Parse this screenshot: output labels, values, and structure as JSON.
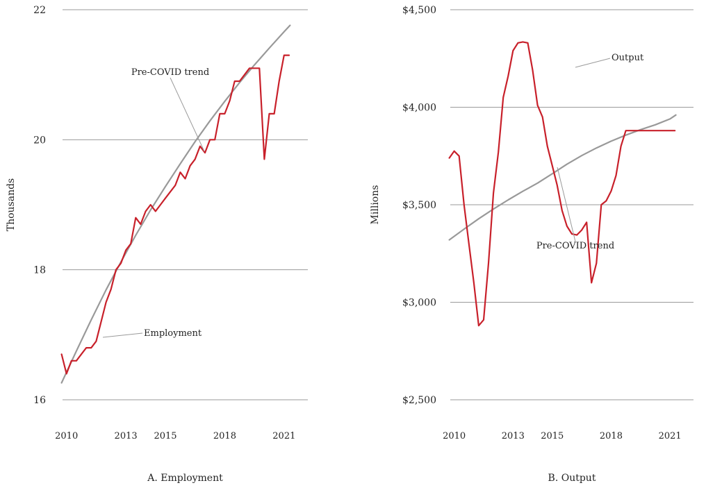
{
  "colors": {
    "actual": "#c8202a",
    "trend": "#999999",
    "grid": "#9a9a9a",
    "leader": "#9a9a9a"
  },
  "chart_data": [
    {
      "type": "line",
      "title": "A. Employment",
      "ylabel": "Thousands",
      "xlabel": "",
      "ylim": [
        16,
        22
      ],
      "xlim": [
        2009.8,
        2022.2
      ],
      "yticks": [
        16,
        18,
        20,
        22
      ],
      "ytick_labels": [
        "16",
        "18",
        "20",
        "22"
      ],
      "xticks": [
        2010,
        2013,
        2015,
        2018,
        2021
      ],
      "xtick_labels": [
        "2010",
        "2013",
        "2015",
        "2018",
        "2021"
      ],
      "grid": true,
      "series": [
        {
          "name": "Employment",
          "color_key": "actual",
          "x": [
            2009.75,
            2010,
            2010.25,
            2010.5,
            2010.75,
            2011,
            2011.25,
            2011.5,
            2011.75,
            2012,
            2012.25,
            2012.5,
            2012.75,
            2013,
            2013.25,
            2013.5,
            2013.75,
            2014,
            2014.25,
            2014.5,
            2014.75,
            2015,
            2015.25,
            2015.5,
            2015.75,
            2016,
            2016.25,
            2016.5,
            2016.75,
            2017,
            2017.25,
            2017.5,
            2017.75,
            2018,
            2018.25,
            2018.5,
            2018.75,
            2019,
            2019.25,
            2019.5,
            2019.75,
            2020,
            2020.25,
            2020.5,
            2020.75,
            2021,
            2021.25
          ],
          "y": [
            16.7,
            16.4,
            16.6,
            16.6,
            16.7,
            16.8,
            16.8,
            16.9,
            17.2,
            17.5,
            17.7,
            18.0,
            18.1,
            18.3,
            18.4,
            18.8,
            18.7,
            18.9,
            19.0,
            18.9,
            19.0,
            19.1,
            19.2,
            19.3,
            19.5,
            19.4,
            19.6,
            19.7,
            19.9,
            19.8,
            20.0,
            20.0,
            20.4,
            20.4,
            20.6,
            20.9,
            20.9,
            21.0,
            21.1,
            21.1,
            21.1,
            19.7,
            20.4,
            20.4,
            20.9,
            21.3,
            21.3
          ]
        },
        {
          "name": "Pre-COVID trend",
          "color_key": "trend",
          "x": [
            2009.75,
            2010.5,
            2011.25,
            2012,
            2012.75,
            2013.5,
            2014.25,
            2015,
            2015.75,
            2016.5,
            2017.25,
            2018,
            2018.75,
            2019.5,
            2020.25,
            2021,
            2021.3
          ],
          "y": [
            16.26,
            16.75,
            17.23,
            17.69,
            18.12,
            18.53,
            18.92,
            19.28,
            19.63,
            19.97,
            20.29,
            20.59,
            20.88,
            21.15,
            21.41,
            21.66,
            21.76
          ]
        }
      ],
      "annotations": [
        {
          "text": "Pre-COVID trend",
          "series": "Pre-COVID trend"
        },
        {
          "text": "Employment",
          "series": "Employment"
        }
      ]
    },
    {
      "type": "line",
      "title": "B. Output",
      "ylabel": "Millions",
      "xlabel": "",
      "ylim": [
        2500,
        4500
      ],
      "xlim": [
        2009.8,
        2022.2
      ],
      "yticks": [
        2500,
        3000,
        3500,
        4000,
        4500
      ],
      "ytick_labels": [
        "$2,500",
        "$3,000",
        "$3,500",
        "$4,000",
        "$4,500"
      ],
      "xticks": [
        2010,
        2013,
        2015,
        2018,
        2021
      ],
      "xtick_labels": [
        "2010",
        "2013",
        "2015",
        "2018",
        "2021"
      ],
      "grid": true,
      "series": [
        {
          "name": "Output",
          "color_key": "actual",
          "x": [
            2009.75,
            2010,
            2010.25,
            2010.5,
            2010.75,
            2011,
            2011.25,
            2011.5,
            2011.75,
            2012,
            2012.25,
            2012.5,
            2012.75,
            2013,
            2013.25,
            2013.5,
            2013.75,
            2014,
            2014.25,
            2014.5,
            2014.75,
            2015,
            2015.25,
            2015.5,
            2015.75,
            2016,
            2016.25,
            2016.5,
            2016.75,
            2017,
            2017.25,
            2017.5,
            2017.75,
            2018,
            2018.25,
            2018.5,
            2018.75,
            2019,
            2019.25,
            2019.5,
            2019.75,
            2020,
            2020.25,
            2020.5,
            2020.75,
            2021,
            2021.25
          ],
          "y": [
            3740,
            3775,
            3750,
            3500,
            3300,
            3100,
            2880,
            2910,
            3200,
            3560,
            3770,
            4050,
            4160,
            4290,
            4330,
            4335,
            4330,
            4190,
            4010,
            3950,
            3800,
            3700,
            3600,
            3470,
            3390,
            3350,
            3345,
            3370,
            3410,
            3100,
            3200,
            3500,
            3520,
            3570,
            3650,
            3800,
            3880,
            3880,
            3880,
            3880,
            3880,
            3880,
            3880,
            3880,
            3880,
            3880,
            3880
          ]
        },
        {
          "name": "Pre-COVID trend",
          "color_key": "trend",
          "x": [
            2009.75,
            2010.5,
            2011.25,
            2012,
            2012.75,
            2013.5,
            2014.25,
            2015,
            2015.75,
            2016.5,
            2017.25,
            2018,
            2018.75,
            2019.5,
            2020.25,
            2021,
            2021.3
          ],
          "y": [
            3320,
            3375,
            3428,
            3478,
            3525,
            3569,
            3611,
            3659,
            3708,
            3752,
            3791,
            3826,
            3857,
            3885,
            3910,
            3940,
            3960
          ]
        }
      ],
      "annotations": [
        {
          "text": "Output",
          "series": "Output"
        },
        {
          "text": "Pre-COVID trend",
          "series": "Pre-COVID trend"
        }
      ]
    }
  ]
}
